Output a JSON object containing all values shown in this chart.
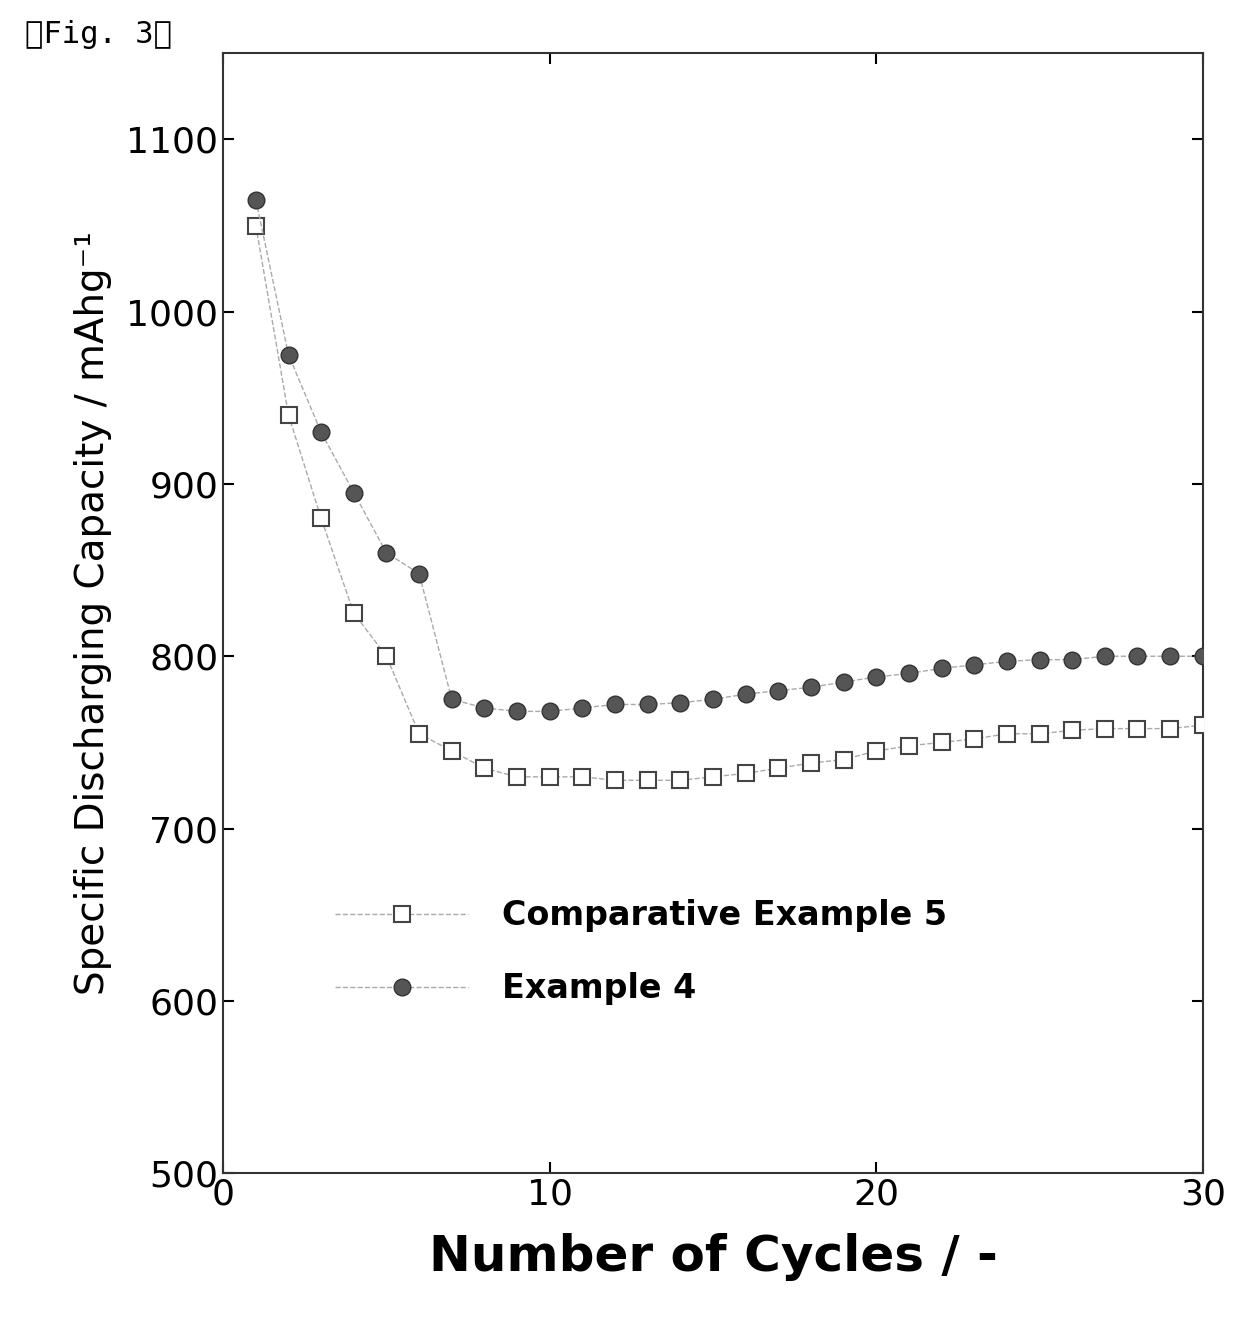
{
  "title_label": "』Fig. 3』",
  "title_label2": "【Fig. 3】",
  "xlabel": "Number of Cycles / -",
  "ylabel": "Specific Discharging Capacity / mAhg⁻¹",
  "xlim": [
    0,
    30
  ],
  "ylim": [
    500,
    1150
  ],
  "yticks": [
    500,
    600,
    700,
    800,
    900,
    1000,
    1100
  ],
  "xticks": [
    0,
    10,
    20,
    30
  ],
  "background_color": "#ffffff",
  "comp_example5": {
    "label": "Comparative Example 5",
    "marker": "s",
    "marker_color": "white",
    "marker_edge_color": "#444444",
    "line_color": "#aaaaaa",
    "x": [
      1,
      2,
      3,
      4,
      5,
      6,
      7,
      8,
      9,
      10,
      11,
      12,
      13,
      14,
      15,
      16,
      17,
      18,
      19,
      20,
      21,
      22,
      23,
      24,
      25,
      26,
      27,
      28,
      29,
      30
    ],
    "y": [
      1050,
      940,
      880,
      825,
      800,
      755,
      745,
      735,
      730,
      730,
      730,
      728,
      728,
      728,
      730,
      732,
      735,
      738,
      740,
      745,
      748,
      750,
      752,
      755,
      755,
      757,
      758,
      758,
      758,
      760
    ]
  },
  "example4": {
    "label": "Example 4",
    "marker": "o",
    "marker_color": "#555555",
    "marker_edge_color": "#333333",
    "line_color": "#aaaaaa",
    "x": [
      1,
      2,
      3,
      4,
      5,
      6,
      7,
      8,
      9,
      10,
      11,
      12,
      13,
      14,
      15,
      16,
      17,
      18,
      19,
      20,
      21,
      22,
      23,
      24,
      25,
      26,
      27,
      28,
      29,
      30
    ],
    "y": [
      1065,
      975,
      930,
      895,
      860,
      848,
      775,
      770,
      768,
      768,
      770,
      772,
      772,
      773,
      775,
      778,
      780,
      782,
      785,
      788,
      790,
      793,
      795,
      797,
      798,
      798,
      800,
      800,
      800,
      800
    ]
  },
  "figure_width": 12.4,
  "figure_height": 13.33
}
